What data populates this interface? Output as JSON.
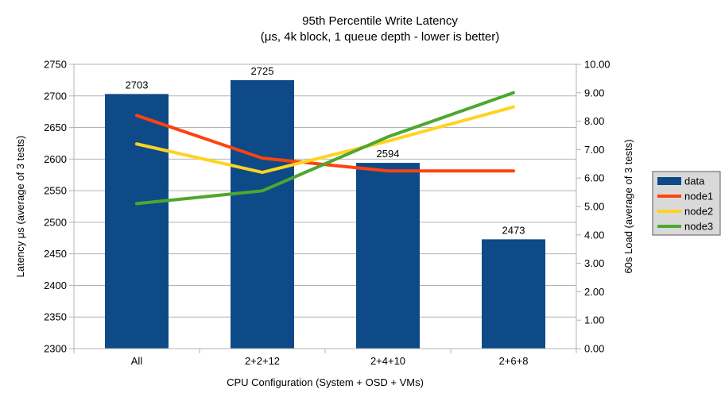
{
  "window": {
    "background": "#ffffff",
    "text_color": "#000000"
  },
  "chart_data": {
    "type": "bar+line",
    "title": "95th Percentile Write Latency",
    "subtitle": "(μs, 4k block, 1 queue depth - lower is better)",
    "categories": [
      "All",
      "2+2+12",
      "2+4+10",
      "2+6+8"
    ],
    "xlabel": "CPU Configuration (System + OSD + VMs)",
    "left_axis": {
      "label": "Latency μs (average of 3 tests)",
      "min": 2300,
      "max": 2750,
      "tick_step": 50,
      "ticks": [
        "2750",
        "2700",
        "2650",
        "2600",
        "2550",
        "2500",
        "2450",
        "2400",
        "2350",
        "2300"
      ]
    },
    "right_axis": {
      "label": "60s Load (average of 3 tests)",
      "min": 0,
      "max": 10,
      "tick_step": 1,
      "ticks": [
        "10.00",
        "9.00",
        "8.00",
        "7.00",
        "6.00",
        "5.00",
        "4.00",
        "3.00",
        "2.00",
        "1.00",
        "0.00"
      ]
    },
    "bar_series": {
      "name": "data",
      "axis": "left",
      "color": "#0e4a87",
      "values": [
        2703,
        2725,
        2594,
        2473
      ],
      "data_labels": [
        "2703",
        "2725",
        "2594",
        "2473"
      ]
    },
    "line_series": [
      {
        "name": "node1",
        "axis": "right",
        "color": "#ff420e",
        "values": [
          8.2,
          6.7,
          6.25,
          6.25
        ]
      },
      {
        "name": "node2",
        "axis": "right",
        "color": "#ffd320",
        "values": [
          7.2,
          6.2,
          7.3,
          8.5
        ]
      },
      {
        "name": "node3",
        "axis": "right",
        "color": "#4ea72e",
        "values": [
          5.1,
          5.55,
          7.45,
          9.0
        ]
      }
    ],
    "legend": {
      "position": "right",
      "background": "#d9d9d9",
      "border_color": "#595959",
      "entries": [
        "data",
        "node1",
        "node2",
        "node3"
      ]
    },
    "grid": {
      "color": "#b3b3b3",
      "horizontal": true,
      "vertical": false
    }
  }
}
